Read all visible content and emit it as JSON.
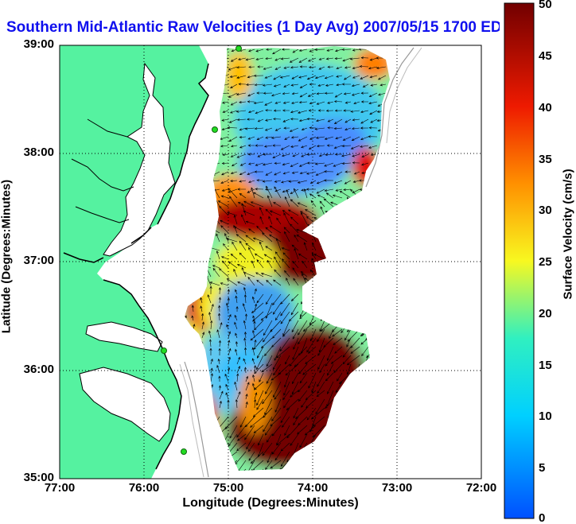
{
  "title": "Southern Mid-Atlantic Raw Velocities (1 Day Avg) 2007/05/15 1700 EDT",
  "axes": {
    "xlabel": "Longitude (Degrees:Minutes)",
    "ylabel": "Latitude (Degrees:Minutes)",
    "xticks": [
      "77:00",
      "76:00",
      "75:00",
      "74:00",
      "73:00",
      "72:00"
    ],
    "yticks": [
      "39:00",
      "38:00",
      "37:00",
      "36:00",
      "35:00"
    ],
    "xlim_deg_west": [
      77,
      72
    ],
    "ylim_deg_north": [
      35,
      39
    ],
    "grid": "dotted"
  },
  "colorbar": {
    "label": "Surface Velocity (cm/s)",
    "ticks": [
      "50",
      "45",
      "40",
      "35",
      "30",
      "25",
      "20",
      "15",
      "10",
      "5",
      "0"
    ],
    "range": [
      0,
      50
    ],
    "colormap": "jet"
  },
  "colors": {
    "title": "#1010ee",
    "land": "#55f2a0",
    "water": "#ffffff",
    "coastline": "#000000",
    "station": "#22dd22"
  },
  "chart_data": {
    "type": "heatmap",
    "title": "Southern Mid-Atlantic Raw Velocities (1 Day Avg) 2007/05/15 1700 EDT",
    "xlabel": "Longitude (Degrees:Minutes)",
    "ylabel": "Latitude (Degrees:Minutes)",
    "colorbar_label": "Surface Velocity (cm/s)",
    "xlim": [
      -77,
      -72
    ],
    "ylim": [
      35,
      39
    ],
    "zlim": [
      0,
      50
    ],
    "regions": [
      {
        "area": "north of 38:00, offshore of Delmarva",
        "speed_cm_s": 10
      },
      {
        "area": "mouth of Chesapeake Bay, 37:00 latitude band",
        "speed_cm_s": 45
      },
      {
        "area": "offshore Virginia/North Carolina, ~36:20",
        "speed_cm_s": 8
      },
      {
        "area": "south-east of Cape Hatteras, 35:00-36:00",
        "speed_cm_s": 50
      }
    ],
    "stations": [
      {
        "lon": -74.85,
        "lat": 38.97
      },
      {
        "lon": -75.15,
        "lat": 38.22
      },
      {
        "lon": -75.72,
        "lat": 36.18
      },
      {
        "lon": -75.52,
        "lat": 35.25
      }
    ]
  }
}
